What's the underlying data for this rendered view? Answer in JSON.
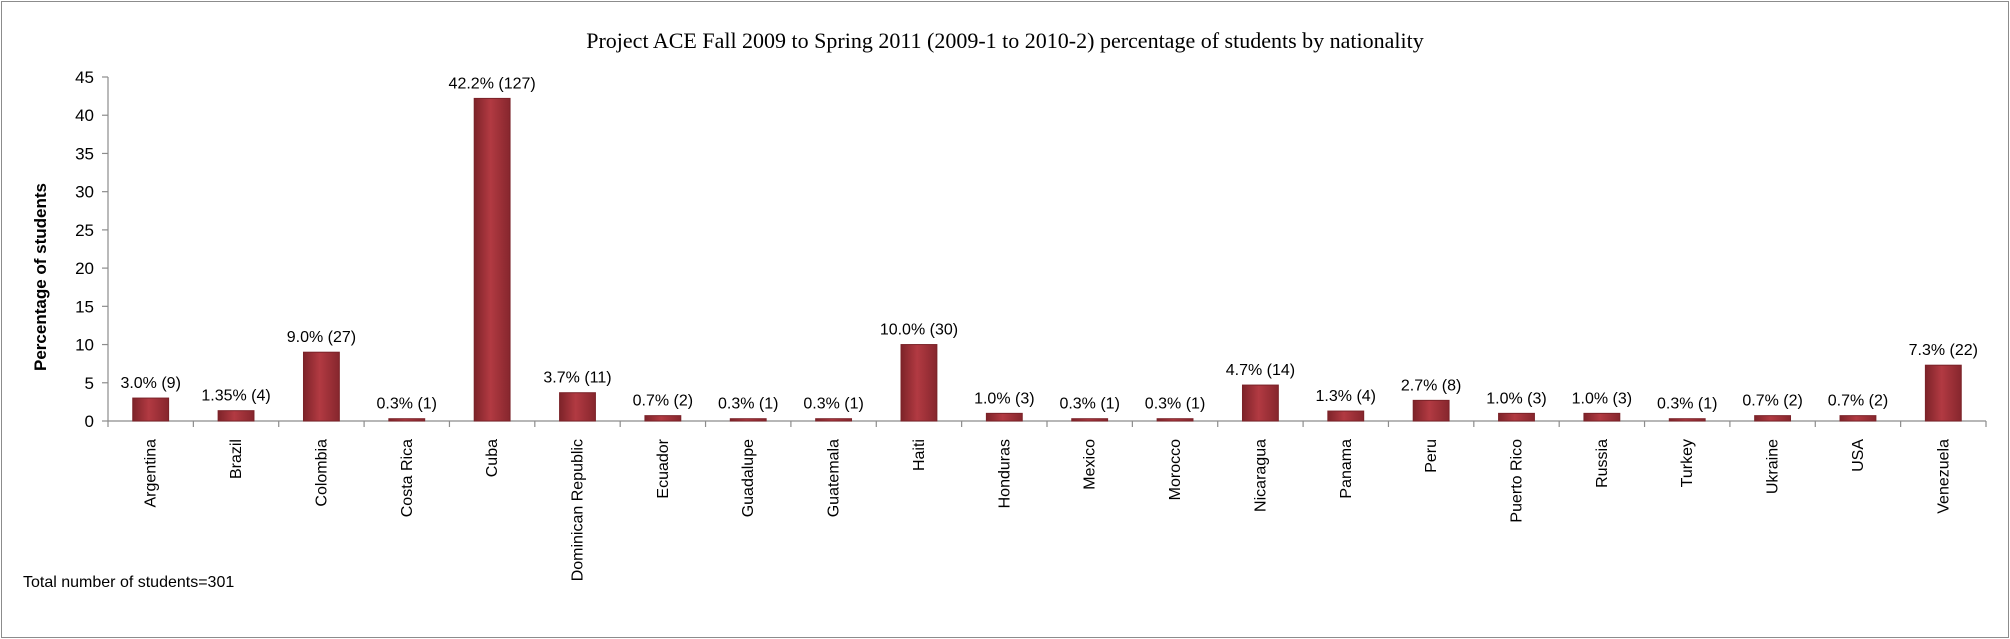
{
  "chart_data": {
    "type": "bar",
    "title": "Project ACE Fall 2009 to Spring 2011 (2009-1 to 2010-2)  percentage of students by nationality",
    "ylabel": "Percentage of students",
    "xlabel": "",
    "ylim": [
      0,
      45
    ],
    "yticks": [
      0,
      5,
      10,
      15,
      20,
      25,
      30,
      35,
      40,
      45
    ],
    "grid": false,
    "legend": "none",
    "bar_color": "#a5333a",
    "bar_edge_color": "#7a2228",
    "categories": [
      "Argentina",
      "Brazil",
      "Colombia",
      "Costa Rica",
      "Cuba",
      "Dominican Republic",
      "Ecuador",
      "Guadalupe",
      "Guatemala",
      "Haiti",
      "Honduras",
      "Mexico",
      "Morocco",
      "Nicaragua",
      "Panama",
      "Peru",
      "Puerto Rico",
      "Russia",
      "Turkey",
      "Ukraine",
      "USA",
      "Venezuela"
    ],
    "values": [
      3.0,
      1.35,
      9.0,
      0.3,
      42.2,
      3.7,
      0.7,
      0.3,
      0.3,
      10.0,
      1.0,
      0.3,
      0.3,
      4.7,
      1.3,
      2.7,
      1.0,
      1.0,
      0.3,
      0.7,
      0.7,
      7.3
    ],
    "data_labels": [
      "3.0% (9)",
      "1.35% (4)",
      "9.0% (27)",
      "0.3% (1)",
      "42.2% (127)",
      "3.7% (11)",
      "0.7% (2)",
      "0.3% (1)",
      "0.3% (1)",
      "10.0% (30)",
      "1.0% (3)",
      "0.3% (1)",
      "0.3% (1)",
      "4.7% (14)",
      "1.3% (4)",
      "2.7% (8)",
      "1.0% (3)",
      "1.0% (3)",
      "0.3% (1)",
      "0.7% (2)",
      "0.7% (2)",
      "7.3% (22)"
    ],
    "note": "Total number of students=301"
  }
}
